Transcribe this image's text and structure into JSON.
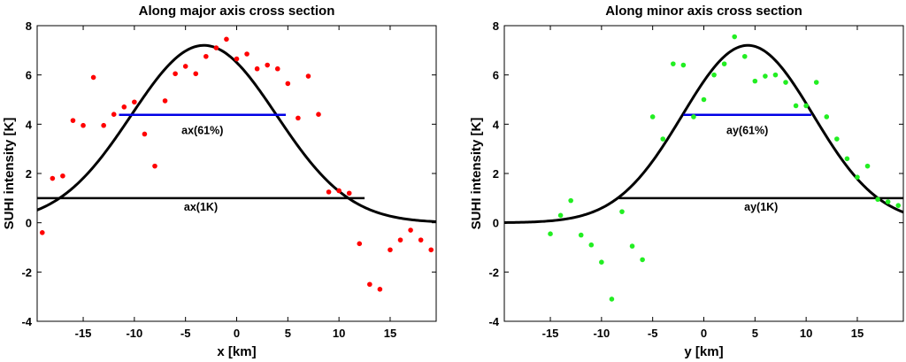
{
  "chart_data": [
    {
      "type": "scatter",
      "title": "Along major axis cross section",
      "xlabel": "x [km]",
      "ylabel": "SUHI intensity [K]",
      "xlim": [
        -19.5,
        19.5
      ],
      "ylim": [
        -4,
        8
      ],
      "xticks": [
        -15,
        -10,
        -5,
        0,
        5,
        10,
        15
      ],
      "yticks": [
        -4,
        -2,
        0,
        2,
        4,
        6,
        8
      ],
      "point_color": "#ff0000",
      "curve": {
        "name": "Gaussian fit",
        "amplitude": 7.2,
        "center": -3.2,
        "sigma": 7.1,
        "color": "#000000"
      },
      "lines": [
        {
          "label": "ax(61%)",
          "y": 4.38,
          "x1": -11.5,
          "x2": 4.8,
          "color": "#0000e6"
        },
        {
          "label": "ax(1K)",
          "y": 1.0,
          "x1": -19.5,
          "x2": 12.5,
          "color": "#000000"
        }
      ],
      "points": [
        [
          -19,
          -0.4
        ],
        [
          -18,
          1.8
        ],
        [
          -17,
          1.9
        ],
        [
          -16,
          4.15
        ],
        [
          -15,
          3.95
        ],
        [
          -14,
          5.9
        ],
        [
          -13,
          3.95
        ],
        [
          -12,
          4.4
        ],
        [
          -11,
          4.7
        ],
        [
          -10,
          4.9
        ],
        [
          -9,
          3.6
        ],
        [
          -8,
          2.3
        ],
        [
          -7,
          4.95
        ],
        [
          -6,
          6.05
        ],
        [
          -5,
          6.35
        ],
        [
          -4,
          6.05
        ],
        [
          -3,
          6.75
        ],
        [
          -2,
          7.1
        ],
        [
          -1,
          7.45
        ],
        [
          0,
          6.65
        ],
        [
          1,
          6.85
        ],
        [
          2,
          6.25
        ],
        [
          3,
          6.4
        ],
        [
          4,
          6.25
        ],
        [
          5,
          5.65
        ],
        [
          6,
          4.25
        ],
        [
          7,
          5.95
        ],
        [
          8,
          4.4
        ],
        [
          9,
          1.25
        ],
        [
          10,
          1.3
        ],
        [
          11,
          1.2
        ],
        [
          12,
          -0.85
        ],
        [
          13,
          -2.5
        ],
        [
          14,
          -2.7
        ],
        [
          15,
          -1.1
        ],
        [
          16,
          -0.7
        ],
        [
          17,
          -0.3
        ],
        [
          18,
          -0.7
        ],
        [
          19,
          -1.1
        ]
      ]
    },
    {
      "type": "scatter",
      "title": "Along minor axis cross section",
      "xlabel": "y [km]",
      "ylabel": "SUHI intensity [K]",
      "xlim": [
        -19.5,
        19.5
      ],
      "ylim": [
        -4,
        8
      ],
      "xticks": [
        -15,
        -10,
        -5,
        0,
        5,
        10,
        15
      ],
      "yticks": [
        -4,
        -2,
        0,
        2,
        4,
        6,
        8
      ],
      "point_color": "#22ee22",
      "curve": {
        "name": "Gaussian fit",
        "amplitude": 7.2,
        "center": 4.3,
        "sigma": 6.4,
        "color": "#000000"
      },
      "lines": [
        {
          "label": "ay(61%)",
          "y": 4.38,
          "x1": -2.0,
          "x2": 10.5,
          "color": "#0000e6"
        },
        {
          "label": "ay(1K)",
          "y": 1.0,
          "x1": -8.3,
          "x2": 19.5,
          "color": "#000000"
        }
      ],
      "points": [
        [
          -15,
          -0.45
        ],
        [
          -14,
          0.3
        ],
        [
          -13,
          0.9
        ],
        [
          -12,
          -0.5
        ],
        [
          -11,
          -0.9
        ],
        [
          -10,
          -1.6
        ],
        [
          -9,
          -3.1
        ],
        [
          -8,
          0.45
        ],
        [
          -7,
          -0.95
        ],
        [
          -6,
          -1.5
        ],
        [
          -5,
          4.3
        ],
        [
          -4,
          3.4
        ],
        [
          -3,
          6.45
        ],
        [
          -2,
          6.4
        ],
        [
          -1,
          4.3
        ],
        [
          0,
          5.0
        ],
        [
          1,
          6.0
        ],
        [
          2,
          6.45
        ],
        [
          3,
          7.55
        ],
        [
          4,
          6.75
        ],
        [
          5,
          5.75
        ],
        [
          6,
          5.95
        ],
        [
          7,
          6.0
        ],
        [
          8,
          5.7
        ],
        [
          9,
          4.75
        ],
        [
          10,
          4.75
        ],
        [
          11,
          5.7
        ],
        [
          12,
          4.3
        ],
        [
          13,
          3.4
        ],
        [
          14,
          2.6
        ],
        [
          15,
          1.85
        ],
        [
          16,
          2.3
        ],
        [
          17,
          0.95
        ],
        [
          18,
          0.85
        ],
        [
          19,
          0.7
        ]
      ]
    }
  ]
}
